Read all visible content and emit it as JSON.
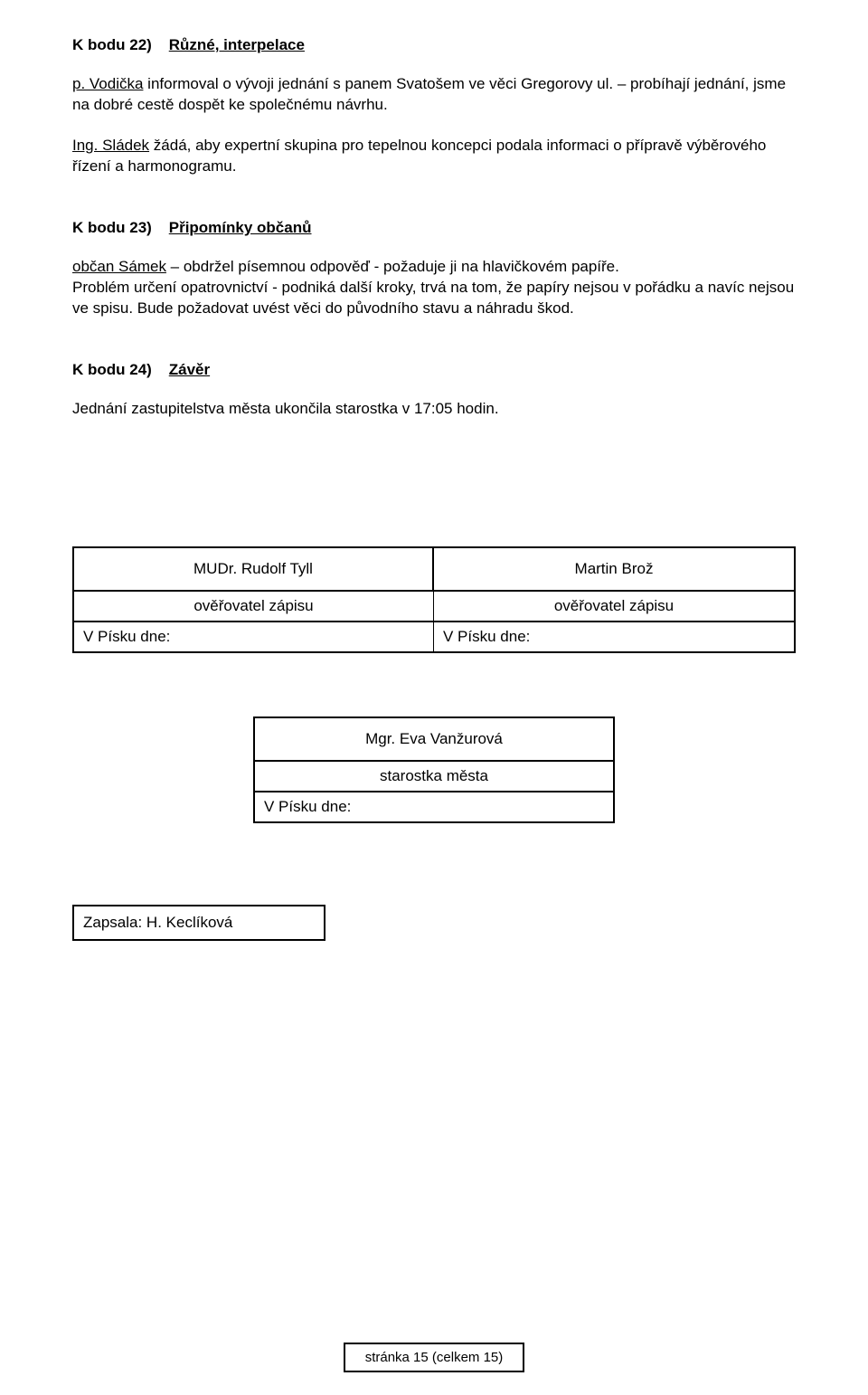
{
  "section22": {
    "heading_prefix": "K bodu 22)    ",
    "heading_title": "Různé, interpelace",
    "p1_lead": "p. Vodička",
    "p1_rest": " informoval o vývoji jednání s panem Svatošem ve věci Gregorovy ul. – probíhají jednání, jsme na dobré cestě dospět ke společnému návrhu.",
    "p2_lead": "Ing. Sládek",
    "p2_rest": " žádá, aby expertní skupina pro tepelnou koncepci podala informaci o přípravě výběrového řízení a harmonogramu."
  },
  "section23": {
    "heading_prefix": "K bodu 23)    ",
    "heading_title": "Připomínky občanů",
    "p1_lead": "občan Sámek",
    "p1_rest": " – obdržel písemnou odpověď - požaduje ji na hlavičkovém papíře.",
    "p2": "Problém určení opatrovnictví - podniká další kroky, trvá na tom, že papíry nejsou v pořádku a navíc nejsou ve spisu. Bude požadovat uvést věci do původního stavu a náhradu škod."
  },
  "section24": {
    "heading_prefix": "K bodu 24)    ",
    "heading_title": "Závěr",
    "p1": "Jednání zastupitelstva města ukončila starostka v 17:05 hodin."
  },
  "signatures": {
    "left_name": "MUDr. Rudolf Tyll",
    "right_name": "Martin Brož",
    "role": "ověřovatel zápisu",
    "date_label": "V Písku dne:"
  },
  "mayor": {
    "name": "Mgr. Eva Vanžurová",
    "role": "starostka města",
    "date_label": "V Písku dne:"
  },
  "recorder": {
    "text": "Zapsala: H. Keclíková"
  },
  "footer": {
    "text": "stránka 15 (celkem 15)"
  }
}
